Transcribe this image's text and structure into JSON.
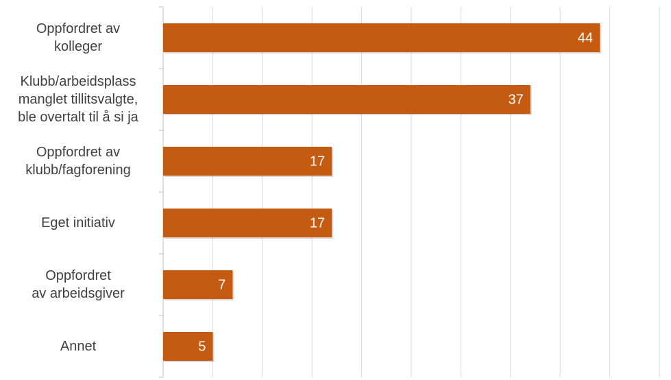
{
  "chart_data": {
    "type": "bar",
    "orientation": "horizontal",
    "categories": [
      "Oppfordret av\nkolleger",
      "Klubb/arbeidsplass\nmanglet tillitsvalgte,\nble overtalt til å si ja",
      "Oppfordret av\nklubb/fagforening",
      "Eget initiativ",
      "Oppfordret\nav arbeidsgiver",
      "Annet"
    ],
    "values": [
      44,
      37,
      17,
      17,
      7,
      5
    ],
    "color": "#c55a11",
    "xlim": [
      0,
      50
    ],
    "xticks": [
      0,
      5,
      10,
      15,
      20,
      25,
      30,
      35,
      40,
      45,
      50
    ],
    "grid": true
  }
}
